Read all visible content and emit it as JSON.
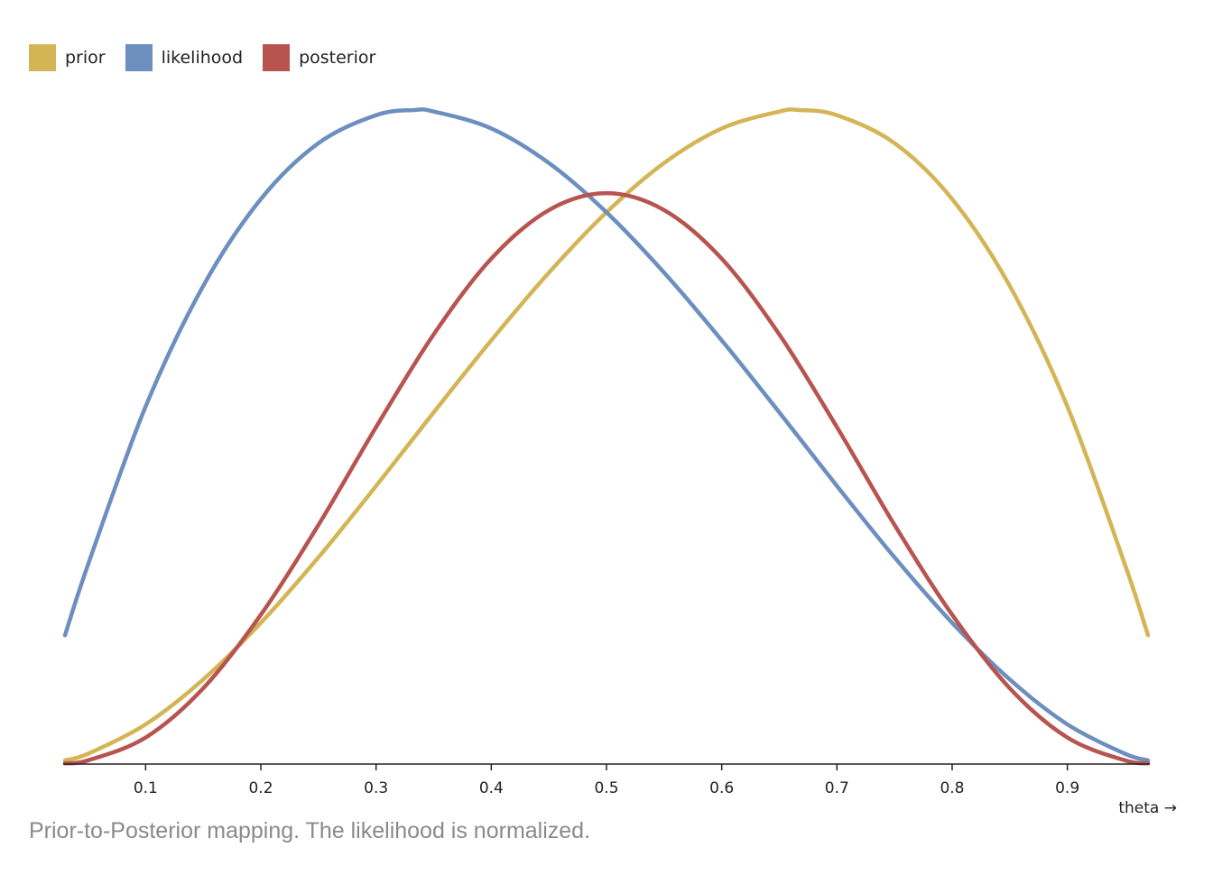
{
  "legend": {
    "items": [
      {
        "label": "prior",
        "color": "#d4b556"
      },
      {
        "label": "likelihood",
        "color": "#6d8fc0"
      },
      {
        "label": "posterior",
        "color": "#b85450"
      }
    ]
  },
  "caption": "Prior-to-Posterior mapping. The likelihood is normalized.",
  "chart_data": {
    "type": "line",
    "xlabel": "theta →",
    "ylabel": "",
    "xlim": [
      0.03,
      0.97
    ],
    "ylim": [
      0,
      2.4
    ],
    "x_ticks": [
      "0.1",
      "0.2",
      "0.3",
      "0.4",
      "0.5",
      "0.6",
      "0.7",
      "0.8",
      "0.9"
    ],
    "y_axis_shown": false,
    "grid": false,
    "legend_position": "top-left",
    "series": [
      {
        "name": "prior",
        "color": "#d4b556",
        "x": [
          0.03,
          0.05,
          0.1,
          0.15,
          0.2,
          0.25,
          0.3,
          0.35,
          0.4,
          0.45,
          0.5,
          0.55,
          0.6,
          0.65,
          0.667,
          0.7,
          0.75,
          0.8,
          0.85,
          0.9,
          0.95,
          0.97
        ],
        "y": [
          0.005,
          0.014,
          0.054,
          0.115,
          0.192,
          0.281,
          0.378,
          0.478,
          0.576,
          0.668,
          0.75,
          0.817,
          0.864,
          0.887,
          0.889,
          0.882,
          0.844,
          0.768,
          0.65,
          0.486,
          0.271,
          0.175
        ]
      },
      {
        "name": "likelihood",
        "color": "#6d8fc0",
        "x": [
          0.03,
          0.05,
          0.1,
          0.15,
          0.2,
          0.25,
          0.3,
          0.333,
          0.35,
          0.4,
          0.45,
          0.5,
          0.55,
          0.6,
          0.65,
          0.7,
          0.75,
          0.8,
          0.85,
          0.9,
          0.95,
          0.97
        ],
        "y": [
          0.175,
          0.271,
          0.486,
          0.65,
          0.768,
          0.844,
          0.882,
          0.889,
          0.887,
          0.864,
          0.817,
          0.75,
          0.668,
          0.576,
          0.478,
          0.378,
          0.281,
          0.192,
          0.115,
          0.054,
          0.014,
          0.005
        ]
      },
      {
        "name": "posterior",
        "color": "#b85450",
        "x": [
          0.03,
          0.05,
          0.1,
          0.15,
          0.2,
          0.25,
          0.3,
          0.35,
          0.4,
          0.45,
          0.5,
          0.55,
          0.6,
          0.65,
          0.7,
          0.75,
          0.8,
          0.85,
          0.9,
          0.95,
          0.97
        ],
        "y": [
          0.001,
          0.005,
          0.036,
          0.103,
          0.203,
          0.325,
          0.458,
          0.584,
          0.687,
          0.753,
          0.776,
          0.753,
          0.687,
          0.584,
          0.458,
          0.325,
          0.203,
          0.103,
          0.036,
          0.005,
          0.001
        ]
      }
    ]
  }
}
